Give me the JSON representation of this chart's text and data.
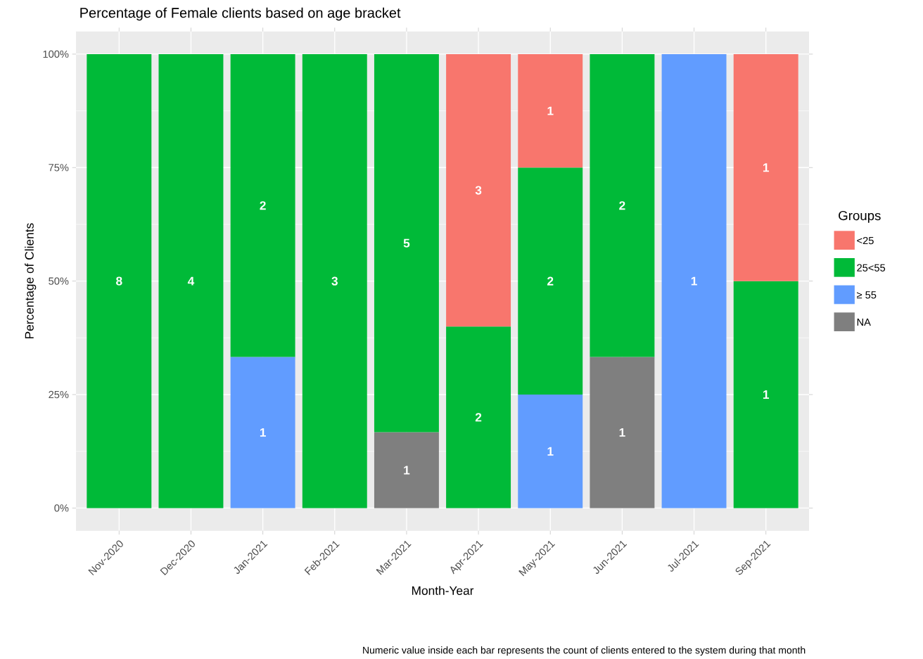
{
  "chart_data": {
    "type": "bar",
    "stacked": true,
    "title": "Percentage of Female clients based on age bracket",
    "xlabel": "Month-Year",
    "ylabel": "Percentage of Clients",
    "legend_title": "Groups",
    "legend": "right",
    "annotations": [
      "Numeric value inside each bar represents the count of clients entered to the system during that month",
      "8",
      "4",
      "1",
      "2",
      "3",
      "1",
      "5",
      "2",
      "3",
      "1",
      "2",
      "1",
      "1",
      "2",
      "1",
      "1",
      "1"
    ],
    "categories": [
      "Nov-2020",
      "Dec-2020",
      "Jan-2021",
      "Feb-2021",
      "Mar-2021",
      "Apr-2021",
      "May-2021",
      "Jun-2021",
      "Jul-2021",
      "Sep-2021"
    ],
    "ylim": [
      -5,
      105
    ],
    "yticks": [
      {
        "value": 0,
        "label": "0%"
      },
      {
        "value": 25,
        "label": "25%"
      },
      {
        "value": 50,
        "label": "50%"
      },
      {
        "value": 75,
        "label": "75%"
      },
      {
        "value": 100,
        "label": "100%"
      }
    ],
    "grid": true,
    "series": [
      {
        "name": "NA",
        "color": "#7f7f7f",
        "values": [
          null,
          null,
          null,
          null,
          16.7,
          null,
          null,
          33.3,
          null,
          null
        ]
      },
      {
        "name": "≥ 55",
        "color": "#619cff",
        "values": [
          null,
          null,
          33.3,
          null,
          null,
          null,
          25,
          null,
          100,
          null
        ]
      },
      {
        "name": "25<55",
        "color": "#00ba38",
        "values": [
          100,
          100,
          66.7,
          100,
          83.3,
          40,
          50,
          66.7,
          null,
          50
        ]
      },
      {
        "name": "<25",
        "color": "#f8766d",
        "values": [
          null,
          null,
          null,
          null,
          null,
          60,
          25,
          null,
          null,
          50
        ]
      }
    ]
  }
}
